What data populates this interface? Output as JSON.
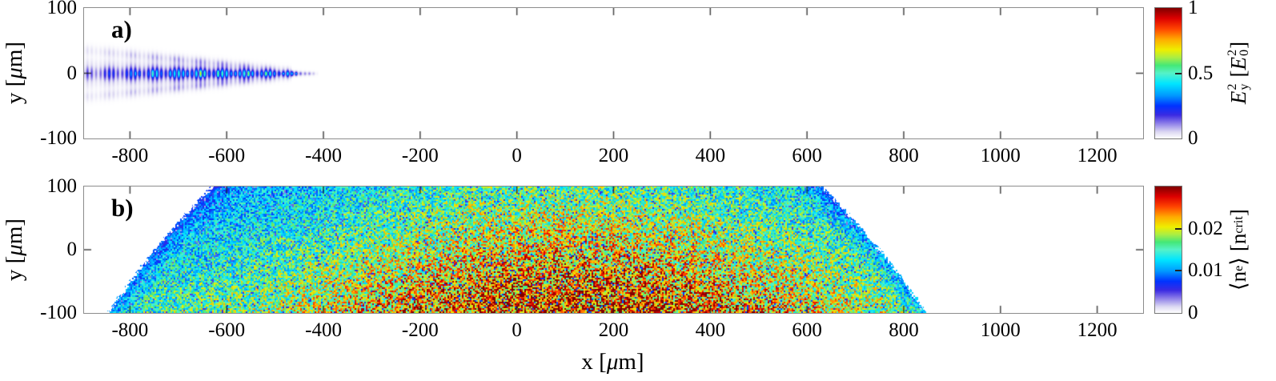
{
  "figure": {
    "background": "#ffffff",
    "frame_color": "#8c8c8c",
    "tick_color": "#1a1a1a"
  },
  "panels": {
    "a": {
      "letter": "a)"
    },
    "b": {
      "letter": "b)"
    }
  },
  "axes": {
    "x": {
      "title_pre": "x [",
      "title_mu": "μ",
      "title_post": "m]",
      "tick_labels": [
        "-800",
        "-600",
        "-400",
        "-200",
        "0",
        "200",
        "400",
        "600",
        "800",
        "1000",
        "1200"
      ],
      "tick_values": [
        -800,
        -600,
        -400,
        -200,
        0,
        200,
        400,
        600,
        800,
        1000,
        1200
      ],
      "range_um": [
        -895,
        1295
      ]
    },
    "y": {
      "title_pre": "y [",
      "title_mu": "μ",
      "title_post": "m]",
      "tick_labels": [
        "100",
        "0",
        "-100"
      ],
      "tick_values": [
        100,
        0,
        -100
      ],
      "range_um": [
        -100,
        100
      ]
    }
  },
  "colorbars": {
    "a": {
      "range": [
        0,
        1
      ],
      "tick_labels": [
        "1",
        "0.5",
        "0"
      ],
      "tick_values": [
        1,
        0.5,
        0
      ],
      "mid_tick_values": [
        0.5
      ],
      "label": {
        "base": "E",
        "sup": "2",
        "sub": "y",
        "open_bracket": "[",
        "base2": "E",
        "sup2": "2",
        "sub2": "0",
        "close_bracket": "]"
      }
    },
    "b": {
      "range": [
        0,
        0.03
      ],
      "tick_labels": [
        "0.02",
        "0.01",
        "0"
      ],
      "tick_values": [
        0.02,
        0.01,
        0
      ],
      "mid_tick_values": [
        0.01,
        0.02
      ],
      "label": {
        "open_angle": "⟨",
        "base": "n",
        "sub": "e",
        "close_angle": "⟩",
        "open_bracket": "[",
        "base2": "n",
        "sub2": "crit",
        "close_bracket": "]"
      }
    }
  },
  "colormap": [
    [
      0.0,
      "#ffffff"
    ],
    [
      0.05,
      "#dcd8f2"
    ],
    [
      0.12,
      "#8878e8"
    ],
    [
      0.18,
      "#3a2ae2"
    ],
    [
      0.25,
      "#0033ff"
    ],
    [
      0.33,
      "#0099ff"
    ],
    [
      0.42,
      "#00e5ff"
    ],
    [
      0.5,
      "#55f2c8"
    ],
    [
      0.56,
      "#44e877"
    ],
    [
      0.62,
      "#aaee44"
    ],
    [
      0.68,
      "#eeee00"
    ],
    [
      0.76,
      "#ffaa00"
    ],
    [
      0.84,
      "#ff4400"
    ],
    [
      0.92,
      "#dd0000"
    ],
    [
      1.0,
      "#7f0000"
    ]
  ],
  "chart_data": [
    {
      "panel": "a",
      "type": "heatmap",
      "xlabel": "x [μm]",
      "ylabel": "y [μm]",
      "x_range": [
        -895,
        1295
      ],
      "y_range": [
        -100,
        100
      ],
      "x_ticks": [
        -800,
        -600,
        -400,
        -200,
        0,
        200,
        400,
        600,
        800,
        1000,
        1200
      ],
      "y_ticks": [
        100,
        0,
        -100
      ],
      "colorbar": {
        "label": "E_y^2 [E_0^2]",
        "range": [
          0,
          1
        ],
        "ticks": [
          0,
          0.5,
          1
        ]
      },
      "content": {
        "description": "focusing laser pulse envelope along y=0, entering from the left edge, tip pointing right; blue striated core with faint diverging side lobes; rest of panel empty (white)",
        "x_start_um": -885,
        "x_tip_um": -410,
        "y_center_um": 0,
        "peak_value": 0.45,
        "core_halfwidth_um_at_left": 12,
        "wing_halfwidth_um_at_left": 35,
        "stripe_period_um": 9,
        "bead_period_um": 47
      }
    },
    {
      "panel": "b",
      "type": "heatmap",
      "xlabel": "x [μm]",
      "ylabel": "y [μm]",
      "x_range": [
        -895,
        1295
      ],
      "y_range": [
        -100,
        100
      ],
      "x_ticks": [
        -800,
        -600,
        -400,
        -200,
        0,
        200,
        400,
        600,
        800,
        1000,
        1200
      ],
      "y_ticks": [
        100,
        0,
        -100
      ],
      "colorbar": {
        "label": "⟨n_e⟩ [n_crit]",
        "range": [
          0,
          0.03
        ],
        "ticks": [
          0,
          0.01,
          0.02
        ]
      },
      "content": {
        "description": "speckled plasma electron density; trapezoidal gas-jet profile widest at bottom, slanted curved side edges, cyan low-density rims, yellow body, densest orange/red at bottom center; white outside",
        "x_extent_top_um": [
          -630,
          630
        ],
        "x_extent_bottom_um": [
          -845,
          845
        ],
        "edge_bulge_um": 45,
        "density_center_x_um": 120,
        "gaussian_sigma_x_um": 640,
        "base_density_ncrit": 0.011,
        "gauss_amp_ncrit": 0.011,
        "vertical_gain_top": 0.75,
        "vertical_gain_bottom": 1.23,
        "edge_band_um": 60,
        "peak_density_ncrit": 0.027,
        "edge_density_ncrit": 0.011,
        "noise": "multiplicative speckle 0.55-1.35, 2px grain"
      }
    }
  ]
}
